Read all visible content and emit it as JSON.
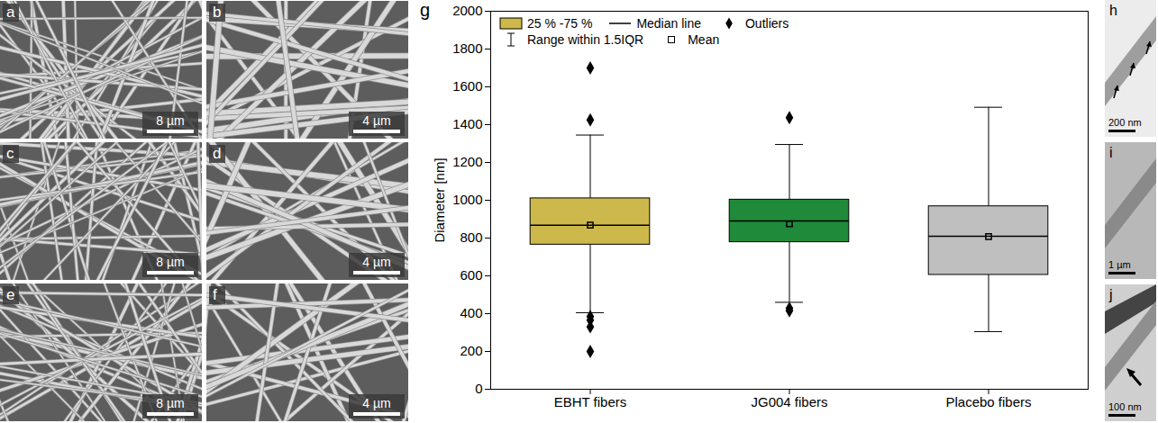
{
  "chart_data": {
    "type": "box",
    "panel_label": "g",
    "y_label": "Diameter [nm]",
    "categories": [
      "EBHT fibers",
      "JG004 fibers",
      "Placebo fibers"
    ],
    "series": [
      {
        "name": "EBHT fibers",
        "color": "#cdb94b",
        "whisker_low": 405,
        "q1": 765,
        "median": 868,
        "mean": 868,
        "q3": 1010,
        "whisker_high": 1345,
        "outliers": [
          1700,
          1425,
          385,
          365,
          330,
          200
        ]
      },
      {
        "name": "JG004 fibers",
        "color": "#1f8a3a",
        "whisker_low": 460,
        "q1": 778,
        "median": 890,
        "mean": 875,
        "q3": 1003,
        "whisker_high": 1295,
        "outliers": [
          1437,
          428,
          415
        ]
      },
      {
        "name": "Placebo fibers",
        "color": "#bfbfbf",
        "whisker_low": 305,
        "q1": 605,
        "median": 810,
        "mean": 808,
        "q3": 968,
        "whisker_high": 1492,
        "outliers": []
      }
    ],
    "ylim": [
      0,
      2000
    ],
    "yticks": [
      0,
      200,
      400,
      600,
      800,
      1000,
      1200,
      1400,
      1600,
      1800,
      2000
    ],
    "grid": false,
    "legend": "top-left",
    "legend_entries": [
      {
        "label": "25 % -75 %",
        "marker": "box"
      },
      {
        "label": "Median line",
        "marker": "median"
      },
      {
        "label": "Outliers",
        "marker": "outlier"
      },
      {
        "label": "Range within 1.5IQR",
        "marker": "whisker"
      },
      {
        "label": "Mean",
        "marker": "mean"
      }
    ]
  },
  "sem_panels": [
    {
      "letter": "a",
      "scale_bar": "8 µm"
    },
    {
      "letter": "b",
      "scale_bar": "4 µm"
    },
    {
      "letter": "c",
      "scale_bar": "8 µm"
    },
    {
      "letter": "d",
      "scale_bar": "4 µm"
    },
    {
      "letter": "e",
      "scale_bar": "8 µm"
    },
    {
      "letter": "f",
      "scale_bar": "4 µm"
    }
  ],
  "tem_panels": [
    {
      "letter": "h",
      "scale_bar": "200 nm"
    },
    {
      "letter": "i",
      "scale_bar": "1 µm"
    },
    {
      "letter": "j",
      "scale_bar": "100 nm"
    }
  ]
}
